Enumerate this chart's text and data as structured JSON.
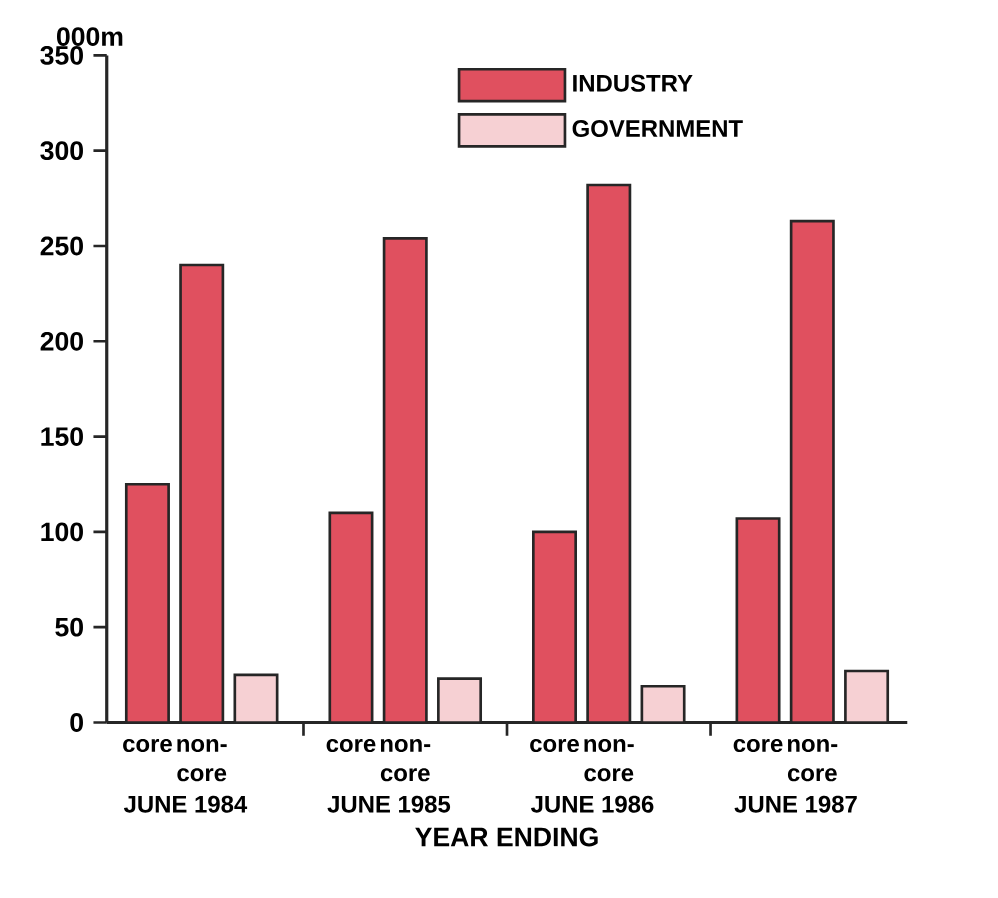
{
  "chart_data": {
    "type": "bar",
    "ylabel": "000m",
    "xlabel": "YEAR ENDING",
    "categories": [
      "core",
      "non-core",
      null,
      "core",
      "non-core",
      null,
      "core",
      "non-core",
      null,
      "core",
      "non-core",
      null
    ],
    "series": [
      {
        "name": "INDUSTRY",
        "color": "#e0505f",
        "values": [
          125,
          240,
          null,
          110,
          254,
          null,
          100,
          282,
          null,
          107,
          263,
          null
        ]
      },
      {
        "name": "GOVERNMENT",
        "color": "#f6d0d3",
        "values": [
          null,
          null,
          25,
          null,
          null,
          23,
          null,
          null,
          19,
          null,
          null,
          27
        ]
      }
    ],
    "annotations": [
      "JUNE 1984",
      "JUNE 1985",
      "JUNE 1986",
      "JUNE 1987"
    ],
    "ylim": [
      0,
      350
    ],
    "yticks": [
      0,
      50,
      100,
      150,
      200,
      250,
      300,
      350
    ],
    "grid": false,
    "legend": "top"
  }
}
